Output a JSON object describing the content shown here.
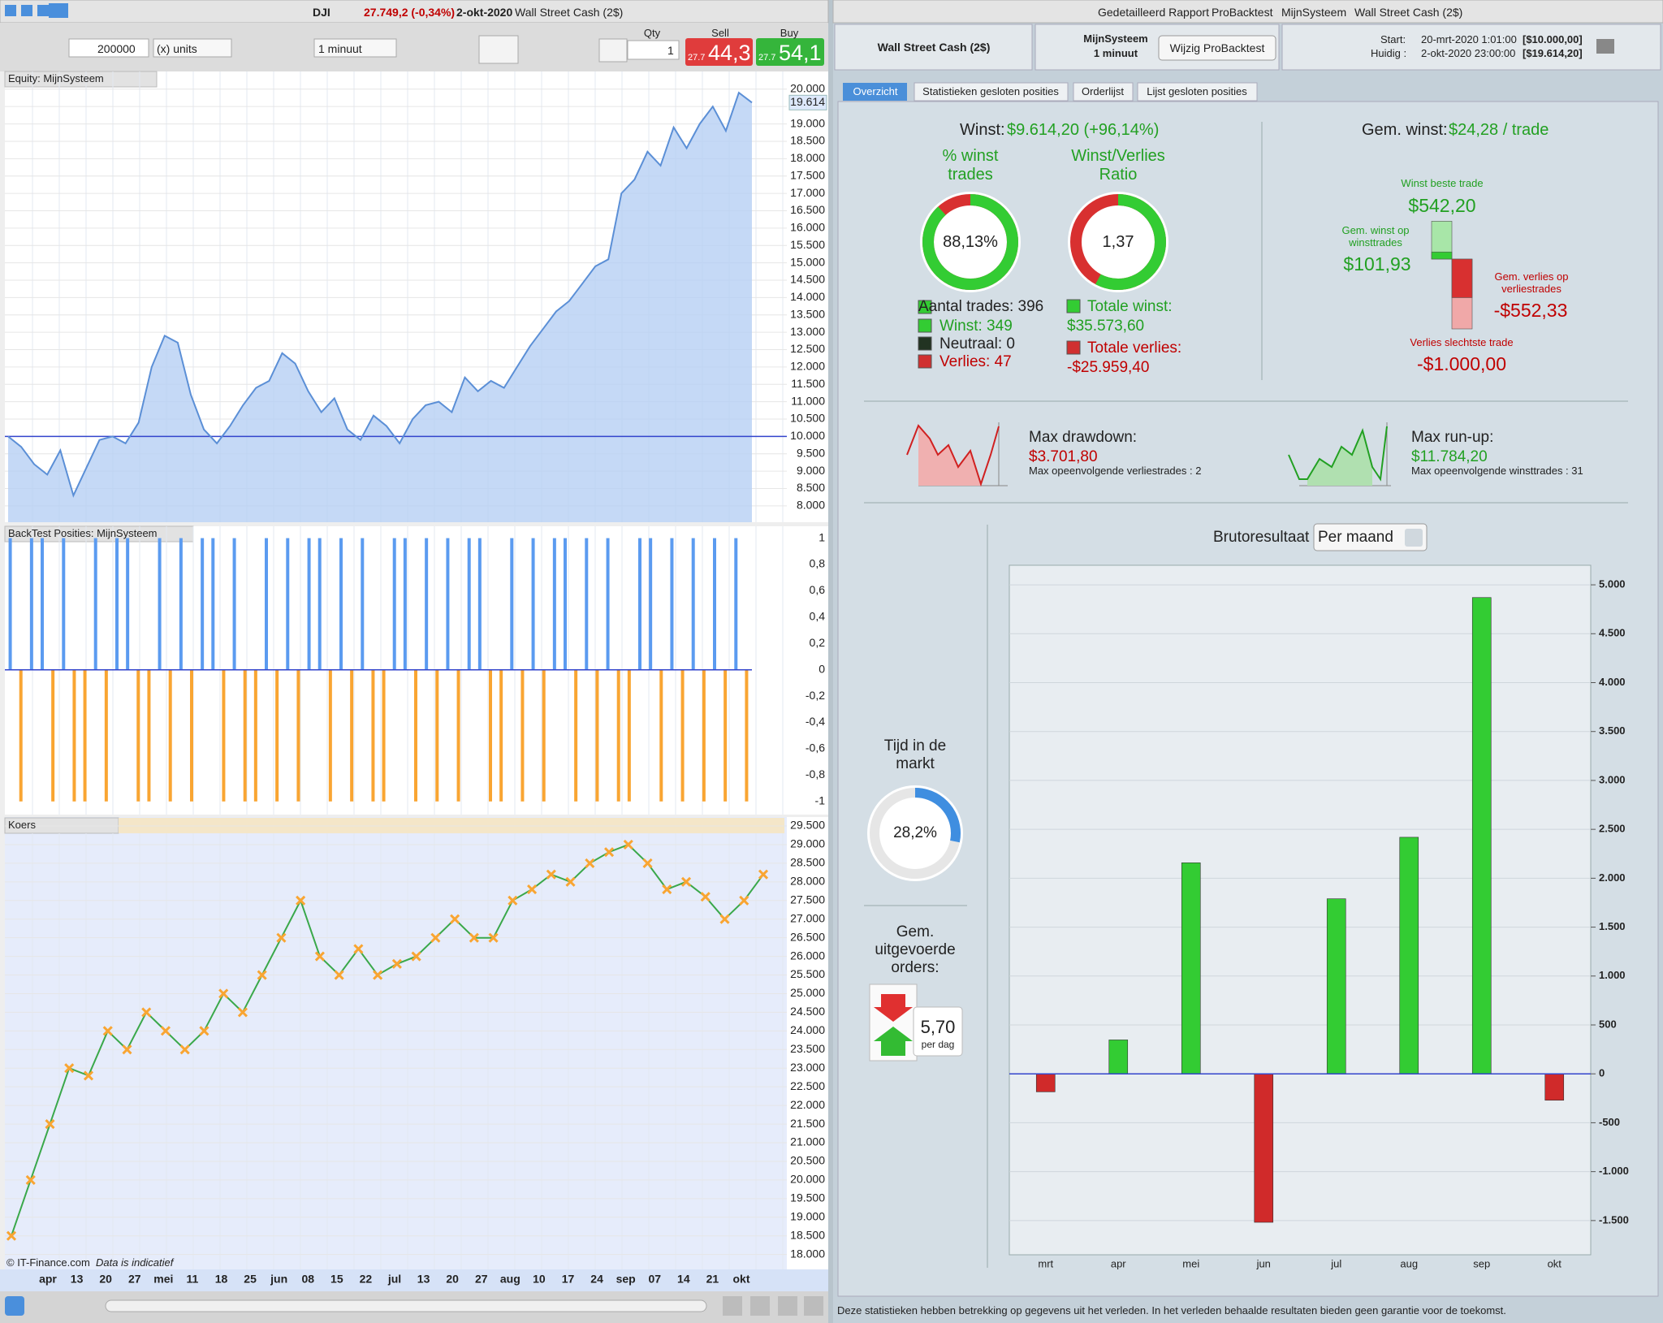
{
  "left_window": {
    "symbol": "DJI",
    "price": "27.749,2 (-0,34%)",
    "date": "2-okt-2020",
    "instrument": "Wall Street Cash (2$)",
    "quantity": "200000",
    "units": "(x) units",
    "timeframe": "1 minuut",
    "qty_label": "Qty",
    "qty": "1",
    "sell_label": "Sell",
    "sell_prefix": "27.7",
    "sell": "44,3",
    "buy_label": "Buy",
    "buy_prefix": "27.7",
    "buy": "54,1",
    "source": "© IT-Finance.com",
    "source_note": "Data is indicatief",
    "date_axis": [
      "apr",
      "13",
      "20",
      "27",
      "mei",
      "11",
      "18",
      "25",
      "jun",
      "08",
      "15",
      "22",
      "jul",
      "13",
      "20",
      "27",
      "aug",
      "10",
      "17",
      "24",
      "sep",
      "07",
      "14",
      "21",
      "okt"
    ]
  },
  "report": {
    "titlebar": [
      "Gedetailleerd Rapport",
      "ProBacktest",
      "MijnSysteem",
      "Wall Street Cash (2$)"
    ],
    "header": {
      "instrument": "Wall Street Cash (2$)",
      "system": "MijnSysteem",
      "timeframe": "1 minuut",
      "button": "Wijzig ProBacktest",
      "start_label": "Start:",
      "start_date": "20-mrt-2020 1:01:00",
      "start_capital": "[$10.000,00]",
      "current_label": "Huidig :",
      "current_date": "2-okt-2020 23:00:00",
      "current_capital": "[$19.614,20]"
    },
    "tabs": [
      "Overzicht",
      "Statistieken gesloten posities",
      "Orderlijst",
      "Lijst gesloten posities"
    ],
    "overview": {
      "profit_label": "Winst:",
      "profit": "$9.614,20 (+96,14%)",
      "win_pct_title": "% winst trades",
      "win_pct": {
        "value": 88.13,
        "label": "88,13%"
      },
      "ratio_title": "Winst/Verlies Ratio",
      "ratio": "1,37",
      "trades": "Aantal trades: 396",
      "wins": "Winst: 349",
      "neutral": "Neutraal: 0",
      "losses": "Verlies: 47",
      "total_win_label": "Totale winst:",
      "total_win": {
        "value": 35573.6,
        "label": "$35.573,60"
      },
      "total_loss_label": "Totale verlies:",
      "total_loss": {
        "value": -25959.4,
        "label": "-$25.959,40"
      },
      "avg_label": "Gem. winst:",
      "avg": "$24,28 / trade",
      "best_label": "Winst beste trade",
      "best": {
        "value": 542.2,
        "label": "$542,20"
      },
      "avg_win_label": "Gem. winst op winsttrades",
      "avg_win": {
        "value": 101.93,
        "label": "$101,93"
      },
      "avg_loss_label": "Gem. verlies op verliestrades",
      "avg_loss": {
        "value": -552.33,
        "label": "-$552,33"
      },
      "worst_label": "Verlies slechtste trade",
      "worst": {
        "value": -1000,
        "label": "-$1.000,00"
      }
    },
    "drawdown": {
      "label": "Max drawdown:",
      "value": "$3.701,80",
      "note": "Max opeenvolgende verliestrades : 2"
    },
    "runup": {
      "label": "Max run-up:",
      "value": "$11.784,20",
      "note": "Max opeenvolgende winsttrades : 31"
    },
    "market": {
      "title": "Tijd in de markt",
      "pct": {
        "value": 28.2,
        "label": "28,2%"
      }
    },
    "orders": {
      "title": "Gem. uitgevoerde orders:",
      "value": "5,70",
      "unit": "per dag"
    },
    "footer": "Deze statistieken hebben betrekking op gegevens uit het verleden. In het verleden behaalde resultaten bieden geen garantie voor de toekomst."
  },
  "chart_data": [
    {
      "type": "line",
      "title": "Equity: MijnSysteem",
      "color": "#5b8fd6",
      "fill_color": "#b6cff4",
      "baseline": 10000,
      "baseline_color": "#3344cc",
      "grid": true,
      "values": [
        10000,
        9700,
        9200,
        8900,
        9600,
        8300,
        9100,
        9900,
        10000,
        9800,
        10400,
        12000,
        12900,
        12700,
        11200,
        10200,
        9800,
        10300,
        10900,
        11400,
        11600,
        12400,
        12100,
        11300,
        10700,
        11100,
        10200,
        9900,
        10600,
        10300,
        9800,
        10500,
        10900,
        11000,
        10700,
        11700,
        11300,
        11600,
        11400,
        12000,
        12600,
        13100,
        13600,
        13900,
        14400,
        14900,
        15100,
        17000,
        17400,
        18200,
        17800,
        18900,
        18300,
        19000,
        19500,
        18800,
        19900,
        19614
      ],
      "last_label": {
        "value": 19614,
        "label": "19.614"
      },
      "ylim": [
        7530,
        20510
      ],
      "yticks": [
        {
          "value": 8000,
          "label": "8.000"
        },
        {
          "value": 8500,
          "label": "8.500"
        },
        {
          "value": 9000,
          "label": "9.000"
        },
        {
          "value": 9500,
          "label": "9.500"
        },
        {
          "value": 10000,
          "label": "10.000"
        },
        {
          "value": 10500,
          "label": "10.500"
        },
        {
          "value": 11000,
          "label": "11.000"
        },
        {
          "value": 11500,
          "label": "11.500"
        },
        {
          "value": 12000,
          "label": "12.000"
        },
        {
          "value": 12500,
          "label": "12.500"
        },
        {
          "value": 13000,
          "label": "13.000"
        },
        {
          "value": 13500,
          "label": "13.500"
        },
        {
          "value": 14000,
          "label": "14.000"
        },
        {
          "value": 14500,
          "label": "14.500"
        },
        {
          "value": 15000,
          "label": "15.000"
        },
        {
          "value": 15500,
          "label": "15.500"
        },
        {
          "value": 16000,
          "label": "16.000"
        },
        {
          "value": 16500,
          "label": "16.500"
        },
        {
          "value": 17000,
          "label": "17.000"
        },
        {
          "value": 17500,
          "label": "17.500"
        },
        {
          "value": 18000,
          "label": "18.000"
        },
        {
          "value": 18500,
          "label": "18.500"
        },
        {
          "value": 19000,
          "label": "19.000"
        },
        {
          "value": 19500,
          "label": "19.500"
        },
        {
          "value": 20000,
          "label": "20.000"
        }
      ]
    },
    {
      "type": "bar",
      "title": "BackTest Posities: MijnSysteem",
      "positive_color": "#5b9bf0",
      "negative_color": "#f9a532",
      "zero_line_color": "#3344cc",
      "values": [
        1,
        -1,
        1,
        1,
        -1,
        1,
        -1,
        -1,
        1,
        -1,
        1,
        1,
        -1,
        -1,
        1,
        -1,
        1,
        -1,
        1,
        1,
        -1,
        1,
        -1,
        -1,
        1,
        -1,
        1,
        -1,
        1,
        1,
        -1,
        1,
        -1,
        1,
        -1,
        -1,
        1,
        1,
        -1,
        1,
        -1,
        1,
        -1,
        1,
        1,
        -1,
        -1,
        1,
        -1,
        1,
        -1,
        1,
        1,
        -1,
        1,
        -1,
        1,
        -1,
        -1,
        1,
        1,
        -1,
        1,
        -1,
        1,
        -1,
        1,
        -1,
        1,
        -1
      ],
      "ylim": [
        -1.1,
        1.09
      ],
      "yticks": [
        1,
        {
          "value": 0.8,
          "label": "0,8"
        },
        {
          "value": 0.6,
          "label": "0,6"
        },
        {
          "value": 0.4,
          "label": "0,4"
        },
        {
          "value": 0.2,
          "label": "0,2"
        },
        0,
        {
          "value": -0.2,
          "label": "-0,2"
        },
        {
          "value": -0.4,
          "label": "-0,4"
        },
        {
          "value": -0.6,
          "label": "-0,6"
        },
        {
          "value": -0.8,
          "label": "-0,8"
        },
        -1
      ]
    },
    {
      "type": "line",
      "title": "Koers",
      "color": "#3aa84a",
      "marker_color": "#f9a532",
      "grid": true,
      "values": [
        18500,
        20000,
        21500,
        23000,
        22800,
        24000,
        23500,
        24500,
        24000,
        23500,
        24000,
        25000,
        24500,
        25500,
        26500,
        27500,
        26000,
        25500,
        26200,
        25500,
        25800,
        26000,
        26500,
        27000,
        26500,
        26500,
        27500,
        27800,
        28200,
        28000,
        28500,
        28800,
        29000,
        28500,
        27800,
        28000,
        27600,
        27000,
        27500,
        28200
      ],
      "ylim": [
        17600,
        29740
      ],
      "yticks": [
        {
          "value": 18000,
          "label": "18.000"
        },
        {
          "value": 18500,
          "label": "18.500"
        },
        {
          "value": 19000,
          "label": "19.000"
        },
        {
          "value": 19500,
          "label": "19.500"
        },
        {
          "value": 20000,
          "label": "20.000"
        },
        {
          "value": 20500,
          "label": "20.500"
        },
        {
          "value": 21000,
          "label": "21.000"
        },
        {
          "value": 21500,
          "label": "21.500"
        },
        {
          "value": 22000,
          "label": "22.000"
        },
        {
          "value": 22500,
          "label": "22.500"
        },
        {
          "value": 23000,
          "label": "23.000"
        },
        {
          "value": 23500,
          "label": "23.500"
        },
        {
          "value": 24000,
          "label": "24.000"
        },
        {
          "value": 24500,
          "label": "24.500"
        },
        {
          "value": 25000,
          "label": "25.000"
        },
        {
          "value": 25500,
          "label": "25.500"
        },
        {
          "value": 26000,
          "label": "26.000"
        },
        {
          "value": 26500,
          "label": "26.500"
        },
        {
          "value": 27000,
          "label": "27.000"
        },
        {
          "value": 27500,
          "label": "27.500"
        },
        {
          "value": 28000,
          "label": "28.000"
        },
        {
          "value": 28500,
          "label": "28.500"
        },
        {
          "value": 29000,
          "label": "29.000"
        },
        {
          "value": 29500,
          "label": "29.500"
        }
      ]
    },
    {
      "type": "bar",
      "title": "Brutoresultaat",
      "period": "Per maand",
      "positive_color": "#33cc33",
      "negative_color": "#d02a2a",
      "zero_line_color": "#3344cc",
      "grid": true,
      "categories": [
        "mrt",
        "apr",
        "mei",
        "jun",
        "jul",
        "aug",
        "sep",
        "okt"
      ],
      "values": [
        -184,
        347,
        2158,
        -1518,
        1790,
        2419,
        4870,
        -270
      ],
      "ylim": [
        -1850,
        5200
      ],
      "yticks": [
        {
          "value": 5000,
          "label": "5.000"
        },
        {
          "value": 4500,
          "label": "4.500"
        },
        {
          "value": 4000,
          "label": "4.000"
        },
        {
          "value": 3500,
          "label": "3.500"
        },
        {
          "value": 3000,
          "label": "3.000"
        },
        {
          "value": 2500,
          "label": "2.500"
        },
        {
          "value": 2000,
          "label": "2.000"
        },
        {
          "value": 1500,
          "label": "1.500"
        },
        {
          "value": 1000,
          "label": "1.000"
        },
        500,
        0,
        -500,
        {
          "value": -1000,
          "label": "-1.000"
        },
        {
          "value": -1500,
          "label": "-1.500"
        }
      ]
    }
  ]
}
